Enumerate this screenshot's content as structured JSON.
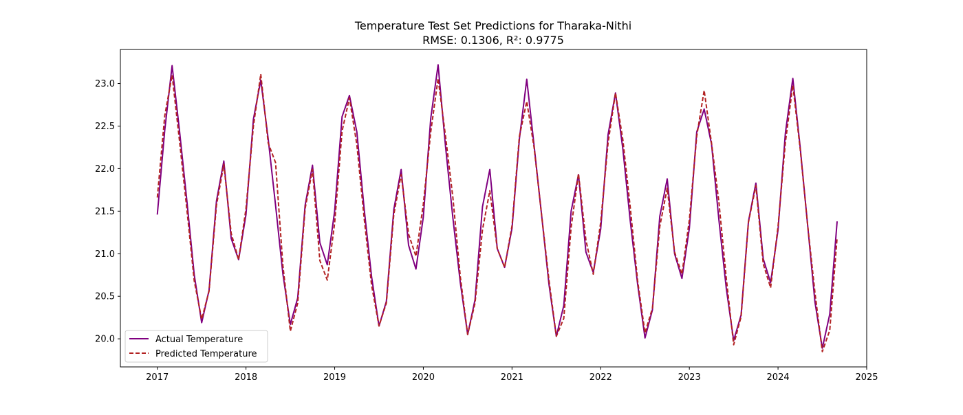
{
  "chart_data": {
    "type": "line",
    "title": "Temperature Test Set Predictions for Tharaka-Nithi",
    "subtitle": "RMSE: 0.1306, R²: 0.9775",
    "xlabel": "",
    "ylabel": "",
    "xlim": [
      "2016-08-01",
      "2025-01-01"
    ],
    "ylim": [
      19.67,
      23.4
    ],
    "x_ticks": [
      "2017",
      "2018",
      "2019",
      "2020",
      "2021",
      "2022",
      "2023",
      "2024",
      "2025"
    ],
    "y_ticks": [
      "20.0",
      "20.5",
      "21.0",
      "21.5",
      "22.0",
      "22.5",
      "23.0"
    ],
    "grid": false,
    "legend_position": "lower-left",
    "x": [
      "2017-01",
      "2017-02",
      "2017-03",
      "2017-04",
      "2017-05",
      "2017-06",
      "2017-07",
      "2017-08",
      "2017-09",
      "2017-10",
      "2017-11",
      "2017-12",
      "2018-01",
      "2018-02",
      "2018-03",
      "2018-04",
      "2018-05",
      "2018-06",
      "2018-07",
      "2018-08",
      "2018-09",
      "2018-10",
      "2018-11",
      "2018-12",
      "2019-01",
      "2019-02",
      "2019-03",
      "2019-04",
      "2019-05",
      "2019-06",
      "2019-07",
      "2019-08",
      "2019-09",
      "2019-10",
      "2019-11",
      "2019-12",
      "2020-01",
      "2020-02",
      "2020-03",
      "2020-04",
      "2020-05",
      "2020-06",
      "2020-07",
      "2020-08",
      "2020-09",
      "2020-10",
      "2020-11",
      "2020-12",
      "2021-01",
      "2021-02",
      "2021-03",
      "2021-04",
      "2021-05",
      "2021-06",
      "2021-07",
      "2021-08",
      "2021-09",
      "2021-10",
      "2021-11",
      "2021-12",
      "2022-01",
      "2022-02",
      "2022-03",
      "2022-04",
      "2022-05",
      "2022-06",
      "2022-07",
      "2022-08",
      "2022-09",
      "2022-10",
      "2022-11",
      "2022-12",
      "2023-01",
      "2023-02",
      "2023-03",
      "2023-04",
      "2023-05",
      "2023-06",
      "2023-07",
      "2023-08",
      "2023-09",
      "2023-10",
      "2023-11",
      "2023-12",
      "2024-01",
      "2024-02",
      "2024-03",
      "2024-04",
      "2024-05",
      "2024-06",
      "2024-07",
      "2024-08",
      "2024-09"
    ],
    "series": [
      {
        "name": "Actual Temperature",
        "color": "#800080",
        "style": "solid",
        "values": [
          21.46,
          22.45,
          23.21,
          22.45,
          21.62,
          20.75,
          20.19,
          20.57,
          21.62,
          22.09,
          21.18,
          20.93,
          21.46,
          22.58,
          23.04,
          22.35,
          21.57,
          20.76,
          20.17,
          20.48,
          21.57,
          22.04,
          21.13,
          20.87,
          21.5,
          22.61,
          22.86,
          22.43,
          21.52,
          20.73,
          20.15,
          20.44,
          21.52,
          21.99,
          21.1,
          20.82,
          21.43,
          22.59,
          23.22,
          22.26,
          21.42,
          20.66,
          20.05,
          20.46,
          21.55,
          21.99,
          21.06,
          20.84,
          21.3,
          22.35,
          23.05,
          22.26,
          21.46,
          20.64,
          20.03,
          20.39,
          21.5,
          21.93,
          21.02,
          20.78,
          21.29,
          22.4,
          22.89,
          22.23,
          21.39,
          20.64,
          20.01,
          20.34,
          21.44,
          21.88,
          21.0,
          20.71,
          21.3,
          22.43,
          22.7,
          22.29,
          21.4,
          20.59,
          19.98,
          20.28,
          21.38,
          21.83,
          20.94,
          20.66,
          21.28,
          22.42,
          23.06,
          22.25,
          21.34,
          20.43,
          19.89,
          20.29,
          21.38
        ]
      },
      {
        "name": "Predicted Temperature",
        "color": "#b22222",
        "style": "dashed",
        "values": [
          21.66,
          22.62,
          23.1,
          22.33,
          21.52,
          20.68,
          20.23,
          20.56,
          21.57,
          22.05,
          21.24,
          20.93,
          21.53,
          22.5,
          23.11,
          22.3,
          22.07,
          20.86,
          20.09,
          20.42,
          21.53,
          21.99,
          20.92,
          20.69,
          21.36,
          22.44,
          22.83,
          22.28,
          21.41,
          20.63,
          20.15,
          20.42,
          21.46,
          21.93,
          21.23,
          20.97,
          21.58,
          22.43,
          23.06,
          22.38,
          21.66,
          20.73,
          20.05,
          20.42,
          21.28,
          21.74,
          21.06,
          20.84,
          21.33,
          22.38,
          22.79,
          22.24,
          21.46,
          20.69,
          20.03,
          20.24,
          21.31,
          21.94,
          21.16,
          20.76,
          21.37,
          22.3,
          22.89,
          22.34,
          21.55,
          20.68,
          20.07,
          20.36,
          21.32,
          21.77,
          21.02,
          20.76,
          21.4,
          22.38,
          22.92,
          22.3,
          21.61,
          20.71,
          19.93,
          20.26,
          21.37,
          21.8,
          20.88,
          20.6,
          21.32,
          22.31,
          22.98,
          22.23,
          21.34,
          20.54,
          19.85,
          20.1,
          21.19
        ]
      }
    ]
  }
}
